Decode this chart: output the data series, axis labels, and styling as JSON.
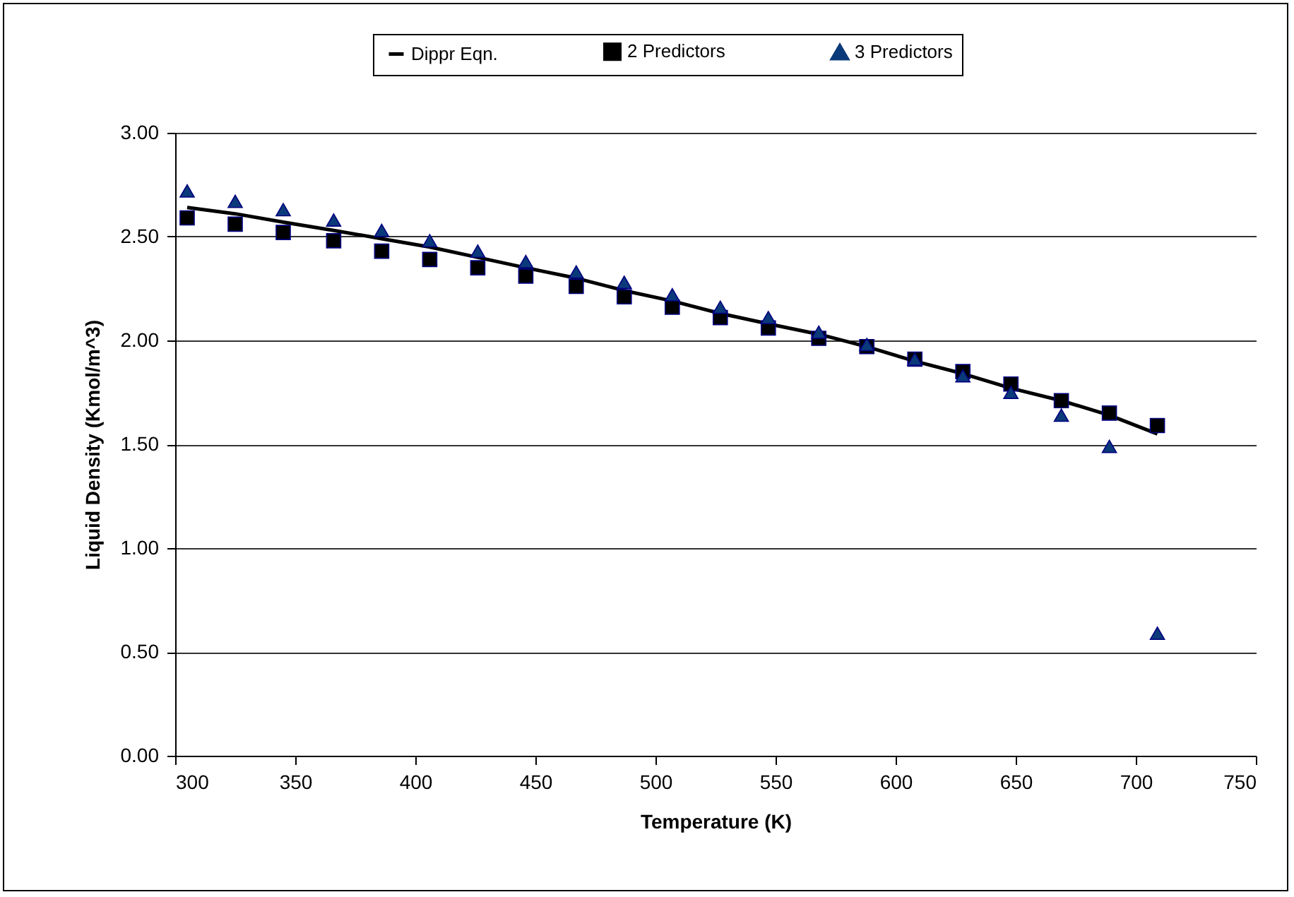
{
  "chart_data": {
    "type": "line",
    "xlabel": "Temperature (K)",
    "ylabel": "Liquid Density (Kmol/m^3)",
    "x": [
      305,
      325,
      345,
      366,
      386,
      406,
      426,
      446,
      467,
      487,
      507,
      527,
      547,
      568,
      588,
      608,
      628,
      648,
      669,
      689,
      709
    ],
    "series": [
      {
        "name": "Dippr Eqn.",
        "color": "#000000",
        "line_style": "solid",
        "values": [
          2.64,
          2.61,
          2.57,
          2.53,
          2.49,
          2.45,
          2.4,
          2.35,
          2.3,
          2.24,
          2.19,
          2.13,
          2.08,
          2.03,
          1.97,
          1.9,
          1.84,
          1.77,
          1.71,
          1.64,
          1.55
        ]
      },
      {
        "name": "2 Predictors",
        "type": "scatter",
        "marker": "square",
        "color": "#000000",
        "values": [
          2.59,
          2.56,
          2.52,
          2.48,
          2.43,
          2.39,
          2.35,
          2.31,
          2.26,
          2.21,
          2.16,
          2.11,
          2.06,
          2.01,
          1.97,
          1.91,
          1.85,
          1.79,
          1.71,
          1.65,
          1.59
        ]
      },
      {
        "name": "3 Predictors",
        "type": "scatter",
        "marker": "triangle",
        "color": "#0b3a7a",
        "values": [
          2.72,
          2.67,
          2.63,
          2.58,
          2.53,
          2.48,
          2.43,
          2.38,
          2.33,
          2.28,
          2.22,
          2.16,
          2.11,
          2.04,
          1.98,
          1.91,
          1.83,
          1.75,
          1.64,
          1.49,
          0.59
        ]
      }
    ],
    "xlim": [
      300,
      750
    ],
    "xticks": [
      300,
      350,
      400,
      450,
      500,
      550,
      600,
      650,
      700,
      750
    ],
    "ylim": [
      0,
      3
    ],
    "yticks": [
      {
        "value": 0,
        "label": "0.00"
      },
      {
        "value": 0.5,
        "label": "0.50"
      },
      {
        "value": 1,
        "label": "1.00"
      },
      {
        "value": 1.5,
        "label": "1.50"
      },
      {
        "value": 2,
        "label": "2.00"
      },
      {
        "value": 2.5,
        "label": "2.50"
      },
      {
        "value": 3,
        "label": "3.00"
      }
    ],
    "grid": "y",
    "legend": "top"
  }
}
